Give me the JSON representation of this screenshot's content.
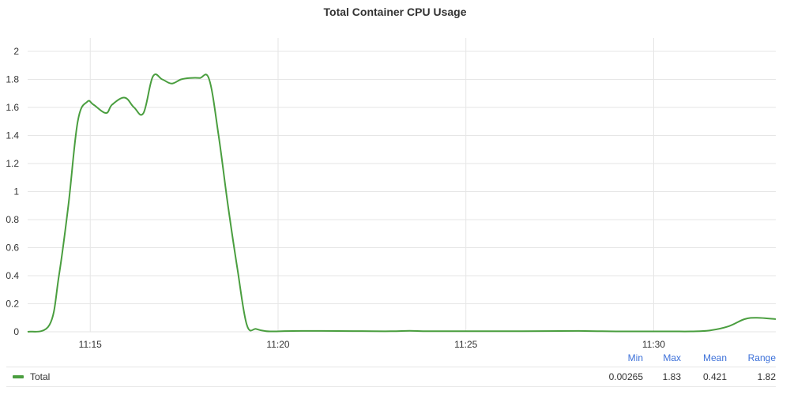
{
  "panel": {
    "title": "Total Container CPU Usage"
  },
  "colors": {
    "series": "#4a9e3f",
    "grid": "#e6e6e6",
    "legend_header": "#3d71d9"
  },
  "legend": {
    "headers": [
      "Min",
      "Max",
      "Mean",
      "Range"
    ],
    "rows": [
      {
        "name": "Total",
        "min": "0.00265",
        "max": "1.83",
        "mean": "0.421",
        "range": "1.82"
      }
    ]
  },
  "chart_data": {
    "type": "line",
    "title": "Total Container CPU Usage",
    "xlabel": "",
    "ylabel": "",
    "x_unit": "minutes",
    "xlim": [
      "11:13:20",
      "11:33:15"
    ],
    "ylim": [
      0,
      2
    ],
    "y_ticks": [
      "0",
      "0.2",
      "0.4",
      "0.6",
      "0.8",
      "1",
      "1.2",
      "1.4",
      "1.6",
      "1.8",
      "2"
    ],
    "x_ticks": [
      "11:15",
      "11:20",
      "11:25",
      "11:30"
    ],
    "grid": true,
    "legend_position": "bottom",
    "series": [
      {
        "name": "Total",
        "x": [
          "11:13:20",
          "11:13:55",
          "11:14:10",
          "11:14:25",
          "11:14:40",
          "11:14:55",
          "11:15:05",
          "11:15:25",
          "11:15:35",
          "11:15:55",
          "11:16:10",
          "11:16:25",
          "11:16:40",
          "11:16:55",
          "11:17:10",
          "11:17:25",
          "11:17:40",
          "11:17:55",
          "11:18:10",
          "11:18:25",
          "11:18:40",
          "11:18:55",
          "11:19:10",
          "11:19:25",
          "11:19:40",
          "11:19:55",
          "11:20:10",
          "11:20:40",
          "11:21:10",
          "11:22:00",
          "11:23:00",
          "11:23:30",
          "11:24:00",
          "11:25:00",
          "11:26:00",
          "11:27:00",
          "11:28:00",
          "11:29:00",
          "11:30:00",
          "11:30:30",
          "11:31:00",
          "11:31:30",
          "11:32:00",
          "11:32:25",
          "11:32:45",
          "11:33:15"
        ],
        "values": [
          0.0,
          0.05,
          0.4,
          0.9,
          1.5,
          1.64,
          1.62,
          1.56,
          1.62,
          1.67,
          1.6,
          1.56,
          1.82,
          1.8,
          1.77,
          1.8,
          1.81,
          1.81,
          1.8,
          1.4,
          0.9,
          0.45,
          0.05,
          0.02,
          0.005,
          0.003,
          0.005,
          0.006,
          0.006,
          0.005,
          0.004,
          0.007,
          0.004,
          0.004,
          0.004,
          0.005,
          0.006,
          0.003,
          0.003,
          0.003,
          0.003,
          0.01,
          0.04,
          0.09,
          0.1,
          0.09
        ]
      }
    ]
  }
}
